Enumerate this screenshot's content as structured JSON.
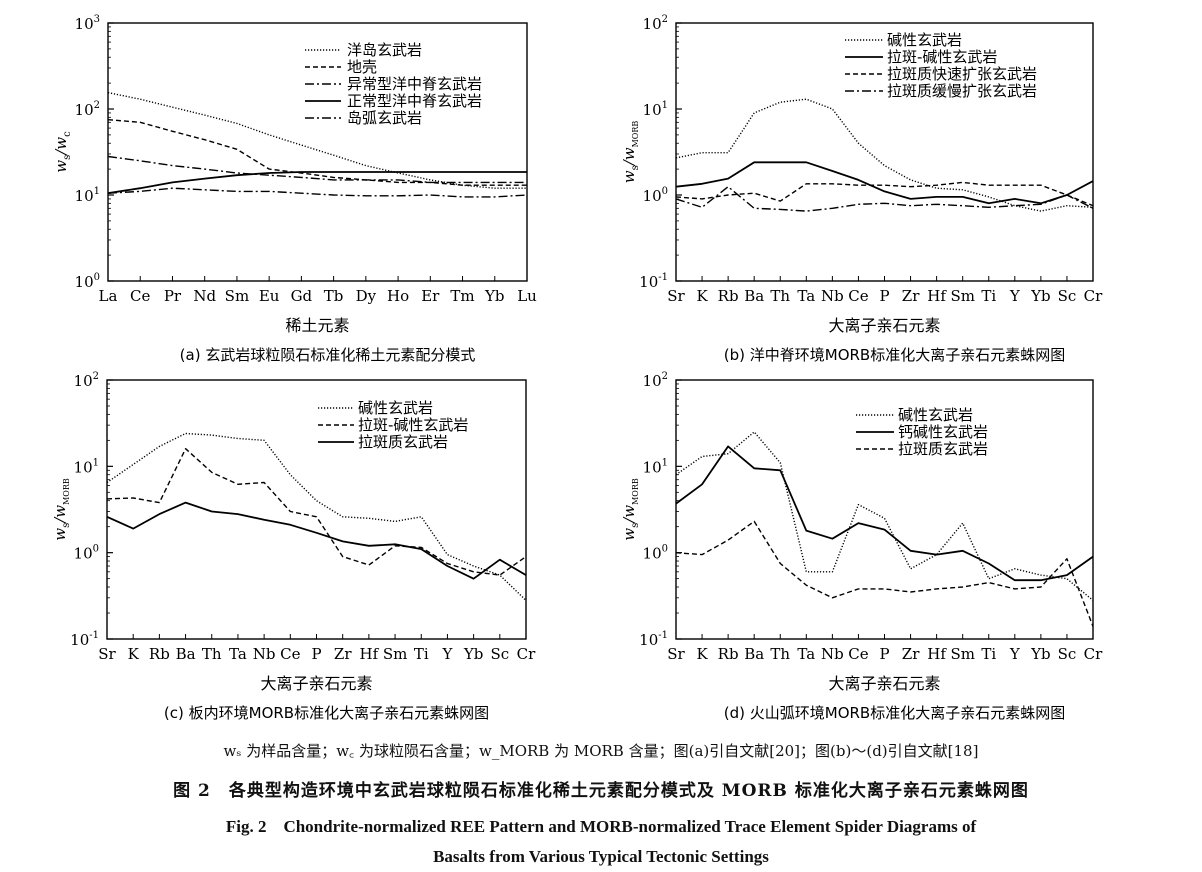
{
  "chart_data": [
    {
      "type": "line",
      "panel_caption": "(a)  玄武岩球粒陨石标准化稀土元素配分模式",
      "xlabel": "稀土元素",
      "ylabel": "ws/wc",
      "yscale": "log",
      "ylim": [
        1,
        1000
      ],
      "yticks": [
        {
          "exp": "0"
        },
        {
          "exp": "1"
        },
        {
          "exp": "2"
        },
        {
          "exp": "3"
        }
      ],
      "categories": [
        "La",
        "Ce",
        "Pr",
        "Nd",
        "Sm",
        "Eu",
        "Gd",
        "Tb",
        "Dy",
        "Ho",
        "Er",
        "Tm",
        "Yb",
        "Lu"
      ],
      "legend_position": "top-right",
      "series": [
        {
          "name": "洋岛玄武岩",
          "dash": "dotted",
          "values": [
            155,
            130,
            105,
            85,
            68,
            50,
            38,
            29,
            22,
            18,
            15,
            13,
            12,
            12
          ]
        },
        {
          "name": "地壳",
          "dash": "dashed",
          "values": [
            75,
            70,
            55,
            44,
            34,
            20,
            18,
            16,
            15,
            14,
            14,
            13,
            13,
            13
          ]
        },
        {
          "name": "异常型洋中脊玄武岩",
          "dash": "dashdot",
          "values": [
            28,
            25,
            22,
            20,
            18,
            17,
            16,
            15,
            15,
            15,
            14,
            14,
            14,
            14
          ]
        },
        {
          "name": "正常型洋中脊玄武岩",
          "dash": "solid",
          "values": [
            10.5,
            12,
            14,
            15.5,
            17,
            18,
            18.5,
            18.5,
            18.5,
            18.5,
            18.5,
            18.5,
            18.5,
            18.5
          ]
        },
        {
          "name": "岛弧玄武岩",
          "dash": "dashdot",
          "values": [
            10.5,
            11,
            12,
            11.5,
            11,
            11,
            10.5,
            10,
            9.8,
            9.8,
            10,
            9.5,
            9.5,
            10
          ]
        }
      ]
    },
    {
      "type": "line",
      "panel_caption": "(b)  洋中脊环境MORB标准化大离子亲石元素蛛网图",
      "xlabel": "大离子亲石元素",
      "ylabel": "ws/wMORB",
      "yscale": "log",
      "ylim": [
        0.1,
        100
      ],
      "yticks": [
        {
          "exp": "-1"
        },
        {
          "exp": "0"
        },
        {
          "exp": "1"
        },
        {
          "exp": "2"
        }
      ],
      "categories": [
        "Sr",
        "K",
        "Rb",
        "Ba",
        "Th",
        "Ta",
        "Nb",
        "Ce",
        "P",
        "Zr",
        "Hf",
        "Sm",
        "Ti",
        "Y",
        "Yb",
        "Sc",
        "Cr"
      ],
      "legend_position": "top-right",
      "series": [
        {
          "name": "碱性玄武岩",
          "dash": "dotted",
          "values": [
            2.7,
            3.1,
            3.1,
            9,
            12,
            13,
            10,
            4,
            2.2,
            1.5,
            1.2,
            1.15,
            0.95,
            0.75,
            0.65,
            0.75,
            0.72
          ]
        },
        {
          "name": "拉斑-碱性玄武岩",
          "dash": "solid",
          "values": [
            1.25,
            1.35,
            1.55,
            2.4,
            2.4,
            2.4,
            1.9,
            1.5,
            1.1,
            0.9,
            0.95,
            0.95,
            0.8,
            0.9,
            0.8,
            1,
            1.45
          ]
        },
        {
          "name": "拉斑质快速扩张玄武岩",
          "dash": "dashed",
          "values": [
            0.95,
            0.9,
            1,
            1.05,
            0.85,
            1.35,
            1.35,
            1.3,
            1.3,
            1.25,
            1.3,
            1.4,
            1.3,
            1.3,
            1.3,
            1,
            0.75
          ]
        },
        {
          "name": "拉斑质缓慢扩张玄武岩",
          "dash": "dashdot",
          "values": [
            0.9,
            0.72,
            1.25,
            0.7,
            0.68,
            0.65,
            0.7,
            0.78,
            0.8,
            0.75,
            0.78,
            0.75,
            0.72,
            0.75,
            0.78,
            1,
            0.7
          ]
        }
      ]
    },
    {
      "type": "line",
      "panel_caption": "(c)  板内环境MORB标准化大离子亲石元素蛛网图",
      "xlabel": "大离子亲石元素",
      "ylabel": "ws/wMORB",
      "yscale": "log",
      "ylim": [
        0.1,
        100
      ],
      "yticks": [
        {
          "exp": "-1"
        },
        {
          "exp": "0"
        },
        {
          "exp": "1"
        },
        {
          "exp": "2"
        }
      ],
      "categories": [
        "Sr",
        "K",
        "Rb",
        "Ba",
        "Th",
        "Ta",
        "Nb",
        "Ce",
        "P",
        "Zr",
        "Hf",
        "Sm",
        "Ti",
        "Y",
        "Yb",
        "Sc",
        "Cr"
      ],
      "legend_position": "top-right",
      "series": [
        {
          "name": "碱性玄武岩",
          "dash": "dotted",
          "values": [
            6.5,
            10.5,
            17,
            24,
            23,
            21,
            20,
            8,
            4,
            2.6,
            2.5,
            2.3,
            2.6,
            0.95,
            0.7,
            0.55,
            0.28
          ]
        },
        {
          "name": "拉斑-碱性玄武岩",
          "dash": "dashed",
          "values": [
            4.2,
            4.3,
            3.8,
            16,
            8.5,
            6.2,
            6.5,
            3,
            2.6,
            0.9,
            0.72,
            1.2,
            1.15,
            0.75,
            0.6,
            0.55,
            0.9
          ]
        },
        {
          "name": "拉斑质玄武岩",
          "dash": "solid",
          "values": [
            2.6,
            1.9,
            2.8,
            3.8,
            3,
            2.8,
            2.4,
            2.1,
            1.7,
            1.35,
            1.2,
            1.25,
            1.1,
            0.7,
            0.5,
            0.83,
            0.55
          ]
        }
      ]
    },
    {
      "type": "line",
      "panel_caption": "(d)  火山弧环境MORB标准化大离子亲石元素蛛网图",
      "xlabel": "大离子亲石元素",
      "ylabel": "ws/wMORB",
      "yscale": "log",
      "ylim": [
        0.1,
        100
      ],
      "yticks": [
        {
          "exp": "-1"
        },
        {
          "exp": "0"
        },
        {
          "exp": "1"
        },
        {
          "exp": "2"
        }
      ],
      "categories": [
        "Sr",
        "K",
        "Rb",
        "Ba",
        "Th",
        "Ta",
        "Nb",
        "Ce",
        "P",
        "Zr",
        "Hf",
        "Sm",
        "Ti",
        "Y",
        "Yb",
        "Sc",
        "Cr"
      ],
      "legend_position": "top-right",
      "series": [
        {
          "name": "碱性玄武岩",
          "dash": "dotted",
          "values": [
            8,
            13,
            14,
            25,
            11,
            0.6,
            0.6,
            3.6,
            2.5,
            0.65,
            0.95,
            2.2,
            0.5,
            0.65,
            0.55,
            0.5,
            0.28
          ]
        },
        {
          "name": "钙碱性玄武岩",
          "dash": "solid",
          "values": [
            3.7,
            6.2,
            17,
            9.5,
            9,
            1.8,
            1.45,
            2.2,
            1.85,
            1.05,
            0.95,
            1.05,
            0.75,
            0.48,
            0.48,
            0.55,
            0.9
          ]
        },
        {
          "name": "拉斑质玄武岩",
          "dash": "dashed",
          "values": [
            1,
            0.95,
            1.4,
            2.3,
            0.75,
            0.42,
            0.3,
            0.38,
            0.38,
            0.35,
            0.38,
            0.4,
            0.45,
            0.38,
            0.4,
            0.85,
            0.14
          ]
        }
      ]
    }
  ],
  "footer": {
    "note": "wₛ 为样品含量；w꜀ 为球粒陨石含量；w_MORB 为 MORB 含量；图(a)引自文献[20]；图(b)～(d)引自文献[18]",
    "title_cn": "图 2　各典型构造环境中玄武岩球粒陨石标准化稀土元素配分模式及 MORB 标准化大离子亲石元素蛛网图",
    "title_en_line1": "Fig. 2　Chondrite-normalized REE Pattern and MORB-normalized Trace Element Spider Diagrams of",
    "title_en_line2": "Basalts from Various Typical Tectonic Settings"
  }
}
